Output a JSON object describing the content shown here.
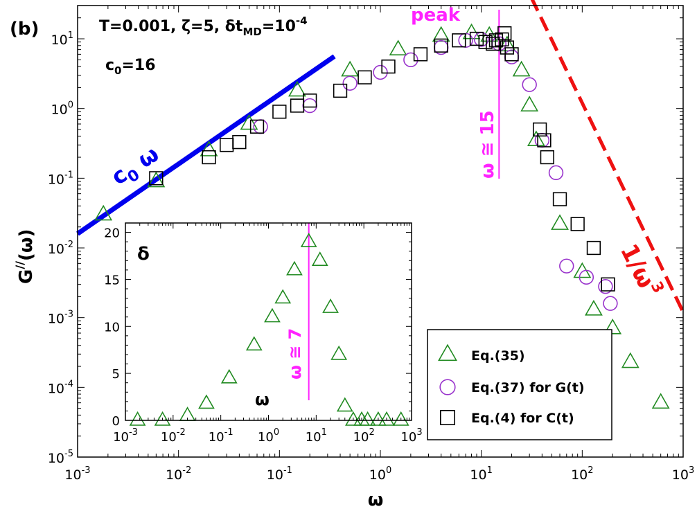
{
  "panel_label": "(b)",
  "params": {
    "line1": "T=0.001, ζ=5, δt",
    "line1_sub": "MD",
    "line1_eq": "=10",
    "line1_sup": "-4",
    "c0_base": "c",
    "c0_sub": "0",
    "c0_eq": "=16"
  },
  "colors": {
    "eq35": "#228b22",
    "eq37": "#9933cc",
    "eq4": "#000000",
    "fit_low": "#0000ee",
    "fit_high": "#ee1111",
    "peak": "#ff22ff"
  },
  "chart_data": {
    "type": "scatter",
    "title": "",
    "xlabel": "ω",
    "ylabel": {
      "base": "G",
      "sup": "//",
      "tail": "(ω)"
    },
    "xscale": "log",
    "yscale": "log",
    "xlim": [
      0.001,
      1000
    ],
    "ylim": [
      1e-05,
      30
    ],
    "x_ticks": [
      {
        "b": "10",
        "e": "-3",
        "v": 0.001
      },
      {
        "b": "10",
        "e": "-2",
        "v": 0.01
      },
      {
        "b": "10",
        "e": "-1",
        "v": 0.1
      },
      {
        "b": "10",
        "e": "0",
        "v": 1
      },
      {
        "b": "10",
        "e": "1",
        "v": 10
      },
      {
        "b": "10",
        "e": "2",
        "v": 100
      },
      {
        "b": "10",
        "e": "3",
        "v": 1000
      }
    ],
    "y_ticks": [
      {
        "b": "10",
        "e": "-5",
        "v": 1e-05
      },
      {
        "b": "10",
        "e": "-4",
        "v": 0.0001
      },
      {
        "b": "10",
        "e": "-3",
        "v": 0.001
      },
      {
        "b": "10",
        "e": "-2",
        "v": 0.01
      },
      {
        "b": "10",
        "e": "-1",
        "v": 0.1
      },
      {
        "b": "10",
        "e": "0",
        "v": 1
      },
      {
        "b": "10",
        "e": "1",
        "v": 10
      }
    ],
    "series": [
      {
        "name": "Eq.(35)",
        "marker": "triangle",
        "x": [
          0.0018,
          0.006,
          0.02,
          0.05,
          0.15,
          0.5,
          1.5,
          4,
          8,
          12,
          18,
          25,
          30,
          35,
          60,
          100,
          130,
          200,
          300,
          600
        ],
        "y": [
          0.03,
          0.09,
          0.25,
          0.6,
          1.8,
          3.5,
          7,
          11,
          12,
          11,
          8,
          3.5,
          1.1,
          0.35,
          0.022,
          0.0045,
          0.0013,
          0.0007,
          0.00023,
          6e-05
        ]
      },
      {
        "name": "Eq.(37) for G(t)",
        "marker": "circle",
        "x": [
          0.065,
          0.2,
          0.5,
          1,
          2,
          4,
          7,
          10,
          15,
          20,
          30,
          40,
          55,
          70,
          110,
          170,
          190
        ],
        "y": [
          0.55,
          1.1,
          2.3,
          3.3,
          5,
          7.5,
          9.5,
          9.8,
          8.5,
          5.5,
          2.2,
          0.35,
          0.12,
          0.0055,
          0.0038,
          0.0028,
          0.0016
        ]
      },
      {
        "name": "Eq.(4) for C(t)",
        "marker": "square",
        "x": [
          0.006,
          0.02,
          0.03,
          0.04,
          0.06,
          0.1,
          0.15,
          0.2,
          0.4,
          0.7,
          1.2,
          2.5,
          4,
          6,
          9,
          11,
          13,
          14,
          16,
          17,
          18,
          20,
          38,
          42,
          45,
          60,
          90,
          130,
          180
        ],
        "y": [
          0.1,
          0.2,
          0.3,
          0.33,
          0.55,
          0.9,
          1.1,
          1.3,
          1.8,
          2.8,
          4,
          6,
          8,
          9.5,
          10,
          9,
          8.5,
          9.5,
          9.8,
          12,
          7.5,
          6,
          0.5,
          0.35,
          0.2,
          0.05,
          0.022,
          0.01,
          0.003
        ]
      }
    ],
    "fits": [
      {
        "label_base": "c",
        "label_sub": "0",
        "label_var": " ω",
        "type": "power",
        "coef": 16,
        "exp": 1,
        "x_range": [
          0.001,
          0.35
        ]
      },
      {
        "label_base": "1/ω",
        "label_sup": "3",
        "type": "power",
        "coef": 1200000,
        "exp": -3,
        "x_range": [
          25,
          1000
        ]
      }
    ],
    "peak": {
      "label": "peak",
      "annot": "ω ≅ 15",
      "x": 15
    },
    "legend": {
      "position": "bottom-right",
      "entries": [
        "Eq.(35)",
        "Eq.(37) for G(t)",
        "Eq.(4) for C(t)"
      ]
    },
    "inset": {
      "type": "scatter",
      "xscale": "log",
      "xlim": [
        0.001,
        1000
      ],
      "ylim": [
        0,
        21
      ],
      "ylabel": "δ",
      "xlabel": "ω",
      "x_ticks": [
        {
          "b": "10",
          "e": "-3",
          "v": 0.001
        },
        {
          "b": "10",
          "e": "-2",
          "v": 0.01
        },
        {
          "b": "10",
          "e": "-1",
          "v": 0.1
        },
        {
          "b": "10",
          "e": "0",
          "v": 1
        },
        {
          "b": "10",
          "e": "1",
          "v": 10
        },
        {
          "b": "10",
          "e": "2",
          "v": 100
        },
        {
          "b": "10",
          "e": "3",
          "v": 1000
        }
      ],
      "y_ticks": [
        0,
        5,
        10,
        15,
        20
      ],
      "annot": "ω ≅ 7",
      "vline_x": 7,
      "series": [
        {
          "name": "δ",
          "marker": "triangle",
          "x": [
            0.0018,
            0.006,
            0.02,
            0.05,
            0.15,
            0.5,
            1.2,
            2,
            3.5,
            7,
            12,
            20,
            30,
            40,
            60,
            90,
            120,
            200,
            300,
            600
          ],
          "y": [
            0,
            0,
            0.5,
            1.8,
            4.5,
            8,
            11,
            13,
            16,
            19,
            17,
            12,
            7,
            1.5,
            0,
            0,
            0,
            0,
            0,
            0
          ]
        }
      ]
    }
  }
}
